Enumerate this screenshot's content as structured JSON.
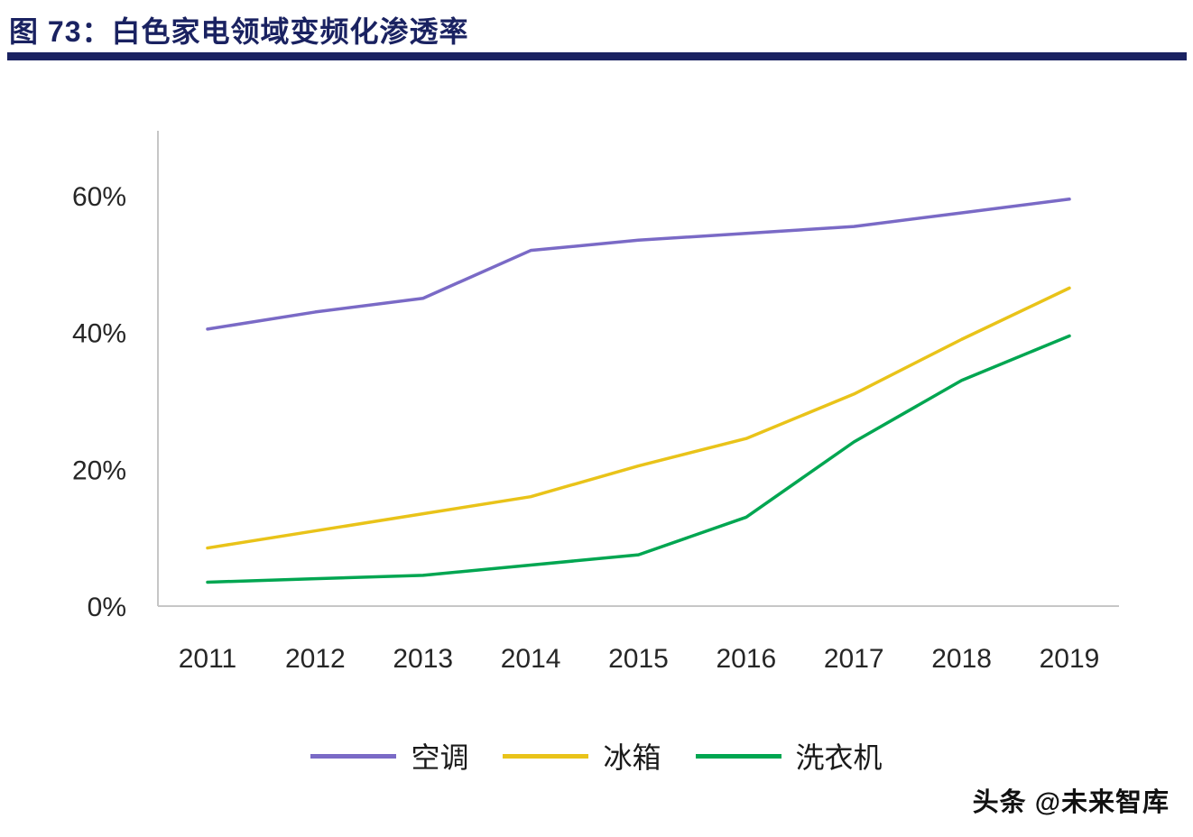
{
  "header": {
    "title": "图 73：白色家电领域变频化渗透率"
  },
  "footer": {
    "watermark": "头条 @未来智库"
  },
  "chart_data": {
    "type": "line",
    "title": "白色家电领域变频化渗透率",
    "categories": [
      "2011",
      "2012",
      "2013",
      "2014",
      "2015",
      "2016",
      "2017",
      "2018",
      "2019"
    ],
    "series": [
      {
        "id": "air-conditioner",
        "name": "空调",
        "color": "#7A6AC6",
        "values": [
          40.5,
          43.0,
          45.0,
          52.0,
          53.5,
          54.5,
          55.5,
          57.5,
          59.5
        ]
      },
      {
        "id": "refrigerator",
        "name": "冰箱",
        "color": "#E9C319",
        "values": [
          8.5,
          11.0,
          13.5,
          16.0,
          20.5,
          24.5,
          31.0,
          39.0,
          46.5
        ]
      },
      {
        "id": "washing-machine",
        "name": "洗衣机",
        "color": "#00A651",
        "values": [
          3.5,
          4.0,
          4.5,
          6.0,
          7.5,
          13.0,
          24.0,
          33.0,
          39.5
        ]
      }
    ],
    "xlabel": "",
    "ylabel": "",
    "y_ticks": [
      0,
      20,
      40,
      60
    ],
    "y_tick_labels": [
      "0%",
      "20%",
      "40%",
      "60%"
    ],
    "ylim": [
      0,
      66
    ],
    "grid": false,
    "legend_position": "bottom",
    "axis_color": "#c6c6c6"
  }
}
